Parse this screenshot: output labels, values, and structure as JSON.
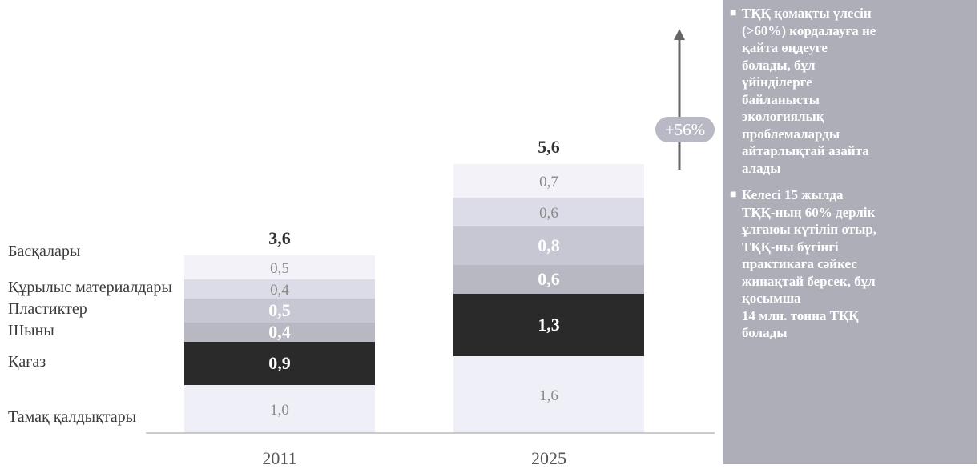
{
  "chart_data": {
    "type": "bar",
    "stacked": true,
    "title": "",
    "xlabel": "",
    "ylabel": "",
    "categories": [
      "2011",
      "2025"
    ],
    "totals": [
      "3,6",
      "5,6"
    ],
    "series": [
      {
        "name": "Тамақ қалдықтары",
        "values": [
          1.0,
          1.6
        ],
        "labels": [
          "1,0",
          "1,6"
        ],
        "color": "#efeff7"
      },
      {
        "name": "Қағаз",
        "values": [
          0.9,
          1.3
        ],
        "labels": [
          "0,9",
          "1,3"
        ],
        "color": "#2a2a2a"
      },
      {
        "name": "Шыны",
        "values": [
          0.4,
          0.6
        ],
        "labels": [
          "0,4",
          "0,6"
        ],
        "color": "#b8b8c2"
      },
      {
        "name": "Пластиктер",
        "values": [
          0.5,
          0.8
        ],
        "labels": [
          "0,5",
          "0,8"
        ],
        "color": "#c7c7d3"
      },
      {
        "name": "Құрылыс материалдары",
        "values": [
          0.4,
          0.6
        ],
        "labels": [
          "0,4",
          "0,6"
        ],
        "color": "#dcdce8"
      },
      {
        "name": "Басқалары",
        "values": [
          0.5,
          0.7
        ],
        "labels": [
          "0,5",
          "0,7"
        ],
        "color": "#f2f2f8"
      }
    ],
    "growth_label": "+56%"
  },
  "colors": {
    "panel": "#aeaeb9",
    "badge": "#b9b9c6",
    "arrow": "#666666"
  },
  "side_panel": {
    "items": [
      "ТҚҚ қомақты үлесін\n(>60%) кордалауға не\nқайта өңдеуге\nболады, бұл\nүйінділерге\nбайланысты\nэкологиялық\nпроблемаларды\nайтарлықтай азайта\nалады",
      "Келесі 15 жылда\nТҚҚ-ның 60% дерлік\nұлғаюы күтіліп отыр,\nТҚҚ-ны бүгінгі\nпрактикаға сәйкес\nжинақтай берсек, бұл\nқосымша\n14 млн. тонна ТҚҚ\nболады"
    ],
    "bullet": "■"
  }
}
